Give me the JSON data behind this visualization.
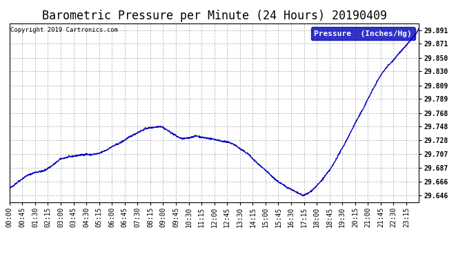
{
  "title": "Barometric Pressure per Minute (24 Hours) 20190409",
  "copyright_text": "Copyright 2019 Cartronics.com",
  "legend_label": "Pressure  (Inches/Hg)",
  "line_color": "#0000bb",
  "background_color": "#ffffff",
  "plot_bg_color": "#ffffff",
  "grid_color": "#bbbbbb",
  "yticks": [
    29.646,
    29.666,
    29.687,
    29.707,
    29.728,
    29.748,
    29.768,
    29.789,
    29.809,
    29.83,
    29.85,
    29.871,
    29.891
  ],
  "ylim": [
    29.636,
    29.901
  ],
  "xtick_labels": [
    "00:00",
    "00:45",
    "01:30",
    "02:15",
    "03:00",
    "03:45",
    "04:30",
    "05:15",
    "06:00",
    "06:45",
    "07:30",
    "08:15",
    "09:00",
    "09:45",
    "10:30",
    "11:15",
    "12:00",
    "12:45",
    "13:30",
    "14:15",
    "15:00",
    "15:45",
    "16:30",
    "17:15",
    "18:00",
    "18:45",
    "19:30",
    "20:15",
    "21:00",
    "21:45",
    "22:30",
    "23:15"
  ],
  "title_fontsize": 12,
  "axis_fontsize": 7,
  "copyright_fontsize": 6.5,
  "legend_fontsize": 8,
  "line_width": 1.0,
  "ctrl_points": [
    [
      0,
      29.656
    ],
    [
      30,
      29.666
    ],
    [
      60,
      29.675
    ],
    [
      90,
      29.68
    ],
    [
      105,
      29.681
    ],
    [
      120,
      29.682
    ],
    [
      150,
      29.69
    ],
    [
      180,
      29.7
    ],
    [
      210,
      29.703
    ],
    [
      240,
      29.705
    ],
    [
      255,
      29.706
    ],
    [
      270,
      29.707
    ],
    [
      285,
      29.706
    ],
    [
      300,
      29.707
    ],
    [
      315,
      29.708
    ],
    [
      330,
      29.711
    ],
    [
      345,
      29.714
    ],
    [
      360,
      29.718
    ],
    [
      390,
      29.724
    ],
    [
      420,
      29.732
    ],
    [
      450,
      29.739
    ],
    [
      480,
      29.745
    ],
    [
      510,
      29.747
    ],
    [
      525,
      29.748
    ],
    [
      535,
      29.748
    ],
    [
      545,
      29.745
    ],
    [
      560,
      29.741
    ],
    [
      575,
      29.737
    ],
    [
      590,
      29.733
    ],
    [
      605,
      29.73
    ],
    [
      615,
      29.73
    ],
    [
      630,
      29.731
    ],
    [
      645,
      29.733
    ],
    [
      660,
      29.734
    ],
    [
      675,
      29.732
    ],
    [
      690,
      29.731
    ],
    [
      705,
      29.73
    ],
    [
      720,
      29.729
    ],
    [
      740,
      29.727
    ],
    [
      760,
      29.725
    ],
    [
      775,
      29.724
    ],
    [
      795,
      29.72
    ],
    [
      810,
      29.715
    ],
    [
      825,
      29.711
    ],
    [
      840,
      29.707
    ],
    [
      855,
      29.7
    ],
    [
      870,
      29.694
    ],
    [
      885,
      29.688
    ],
    [
      900,
      29.683
    ],
    [
      915,
      29.677
    ],
    [
      930,
      29.671
    ],
    [
      945,
      29.666
    ],
    [
      960,
      29.662
    ],
    [
      975,
      29.658
    ],
    [
      990,
      29.655
    ],
    [
      1005,
      29.651
    ],
    [
      1020,
      29.648
    ],
    [
      1030,
      29.646
    ],
    [
      1035,
      29.646
    ],
    [
      1040,
      29.647
    ],
    [
      1050,
      29.649
    ],
    [
      1065,
      29.654
    ],
    [
      1080,
      29.66
    ],
    [
      1095,
      29.667
    ],
    [
      1110,
      29.675
    ],
    [
      1125,
      29.683
    ],
    [
      1140,
      29.693
    ],
    [
      1155,
      29.705
    ],
    [
      1170,
      29.716
    ],
    [
      1185,
      29.728
    ],
    [
      1200,
      29.74
    ],
    [
      1215,
      29.753
    ],
    [
      1230,
      29.764
    ],
    [
      1245,
      29.776
    ],
    [
      1260,
      29.789
    ],
    [
      1275,
      29.801
    ],
    [
      1290,
      29.813
    ],
    [
      1305,
      29.824
    ],
    [
      1320,
      29.833
    ],
    [
      1330,
      29.838
    ],
    [
      1340,
      29.842
    ],
    [
      1350,
      29.847
    ],
    [
      1360,
      29.852
    ],
    [
      1370,
      29.857
    ],
    [
      1380,
      29.861
    ],
    [
      1390,
      29.866
    ],
    [
      1400,
      29.871
    ],
    [
      1410,
      29.876
    ],
    [
      1420,
      29.881
    ],
    [
      1430,
      29.886
    ],
    [
      1439,
      29.893
    ]
  ]
}
